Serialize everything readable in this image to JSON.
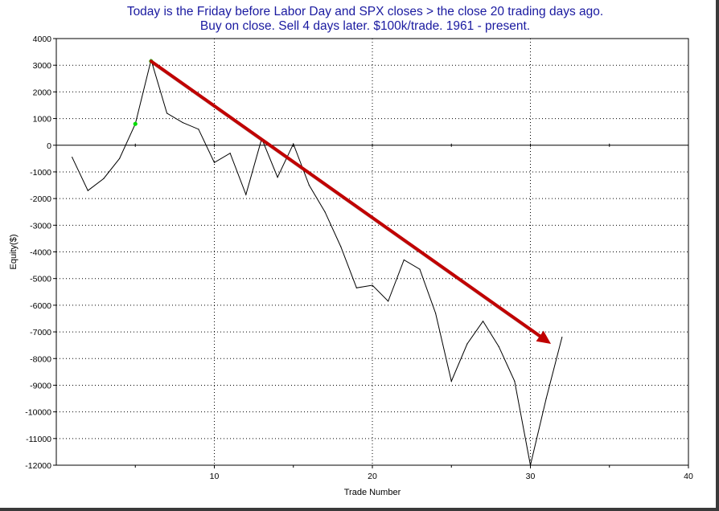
{
  "chart_data": {
    "type": "line",
    "title": "Today is the Friday before Labor Day and SPX closes > the close 20 trading days ago.",
    "subtitle": "Buy on close.  Sell 4 days later.  $100k/trade.  1961 - present.",
    "xlabel": "Trade Number",
    "ylabel": "Equity($)",
    "xlim": [
      0,
      40
    ],
    "ylim": [
      -12000,
      4000
    ],
    "x_ticks": [
      10,
      20,
      30,
      40
    ],
    "y_ticks": [
      4000,
      3000,
      2000,
      1000,
      0,
      -1000,
      -2000,
      -3000,
      -4000,
      -5000,
      -6000,
      -7000,
      -8000,
      -9000,
      -10000,
      -11000,
      -12000
    ],
    "grid": true,
    "colors": {
      "line": "#000000",
      "grid": "#000000",
      "highlight": "#00dd00",
      "arrow": "#c00000",
      "title": "#1a1aa0"
    },
    "series": [
      {
        "x": [
          1,
          2,
          3,
          4,
          5,
          6,
          7,
          8,
          9,
          10,
          11,
          12,
          13,
          14,
          15,
          16,
          17,
          18,
          19,
          20,
          21,
          22,
          23,
          24,
          25,
          26,
          27,
          28,
          29,
          30,
          31,
          32
        ],
        "values": [
          -450,
          -1700,
          -1250,
          -500,
          800,
          3200,
          1200,
          850,
          600,
          -650,
          -300,
          -1850,
          250,
          -1200,
          50,
          -1500,
          -2500,
          -3800,
          -5350,
          -5250,
          -5850,
          -4300,
          -4650,
          -6300,
          -8850,
          -7450,
          -6600,
          -7550,
          -8850,
          -12000,
          -9500,
          -7200
        ]
      }
    ],
    "highlight_points": [
      {
        "x": 5,
        "y": 800
      },
      {
        "x": 6,
        "y": 3150
      }
    ],
    "annotation_arrow": {
      "from": [
        6,
        3150
      ],
      "to": [
        31.3,
        -7450
      ]
    }
  }
}
